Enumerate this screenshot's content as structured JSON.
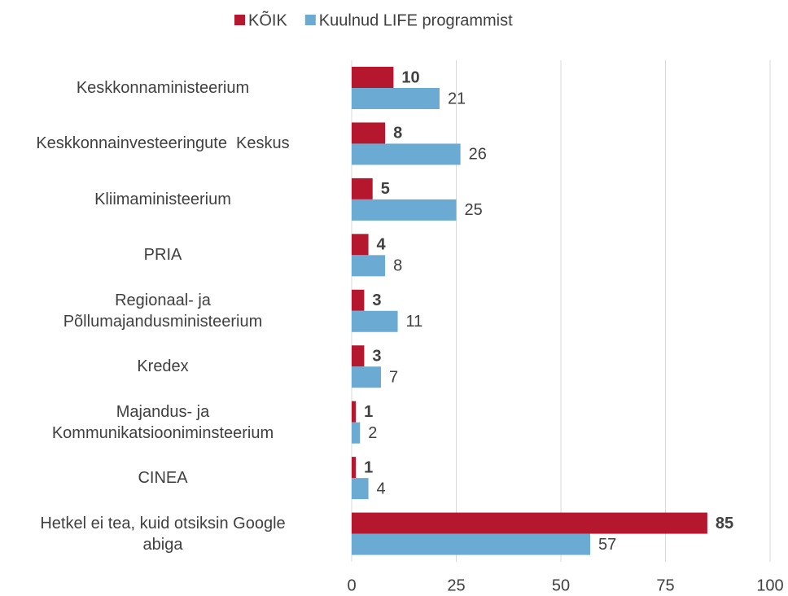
{
  "chart_data": {
    "type": "hbar",
    "categories": [
      "Keskkonnaministeerium",
      "Keskkonnainvesteeringute  Keskus",
      "Kliimaministeerium",
      "PRIA",
      "Regionaal- ja\nPõllumajandusministeerium",
      "Kredex",
      "Majandus- ja\nKommunikatsiooniminsteerium",
      "CINEA",
      "Hetkel ei tea, kuid otsiksin Google\nabiga"
    ],
    "series": [
      {
        "name": "KÕIK",
        "color": "#b5172f",
        "values": [
          10,
          8,
          5,
          4,
          3,
          3,
          1,
          1,
          85
        ]
      },
      {
        "name": "Kuulnud LIFE programmist",
        "color": "#6aaad3",
        "values": [
          21,
          26,
          25,
          8,
          11,
          7,
          2,
          4,
          57
        ]
      }
    ],
    "xlim": [
      0,
      100
    ],
    "xticks": [
      0,
      25,
      50,
      75,
      100
    ],
    "grid": true,
    "legend": "top"
  }
}
